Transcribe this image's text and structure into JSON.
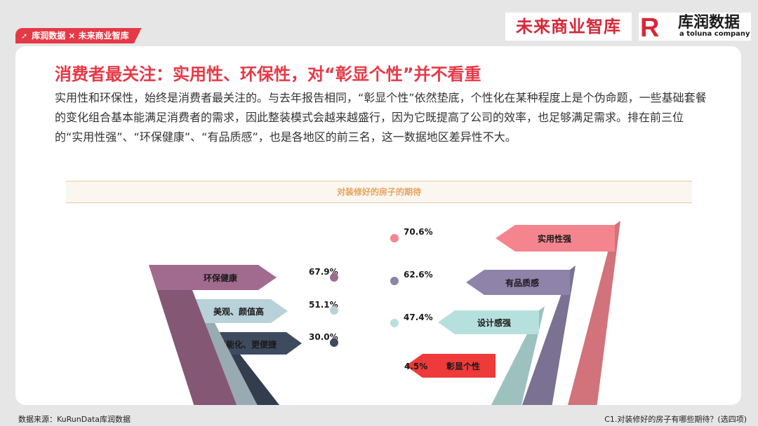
{
  "header": {
    "tag_label": "库润数据 × 未来商业智库",
    "brand_cn": "未来商业智库",
    "logo_letter": "R",
    "logo_name": "库润数据",
    "logo_sub": "a toluna company"
  },
  "main": {
    "headline": "消费者最关注：实用性、环保性，对“彰显个性”并不看重",
    "intro": "实用性和环保性，始终是消费者最关注的。与去年报告相同，“彰显个性”依然垫底，个性化在某种程度上是个伪命题，一些基础套餐的变化组合基本能满足消费者的需求，因此整装模式会越来越盛行，因为它既提高了公司的效率，也足够满足需求。排在前三位的“实用性强”、“环保健康”、“有品质感”，也是各地区的前三名，这一数据地区差异性不大。"
  },
  "chart_data": {
    "type": "bar",
    "title": "对装修好的房子的期待",
    "categories": [
      "实用性强",
      "环保健康",
      "有品质感",
      "美观、颜值高",
      "设计感强",
      "智能化、更便捷",
      "彰显个性"
    ],
    "values": [
      70.6,
      67.9,
      62.6,
      51.1,
      47.4,
      30.0,
      4.5
    ],
    "value_labels": [
      "70.6%",
      "67.9%",
      "62.6%",
      "51.1%",
      "47.4%",
      "30.0%",
      "4.5%"
    ],
    "unit": "%",
    "colors": {
      "实用性强": "#f4858e",
      "环保健康": "#a16b8f",
      "有品质感": "#8f83aa",
      "美观、颜值高": "#b9d1d9",
      "设计感强": "#b6e0dd",
      "智能化、更便捷": "#3e4a5e",
      "彰显个性": "#ee3a3a"
    }
  },
  "footer": {
    "source": "数据来源：KuRunData库润数据",
    "question": "C1.对装修好的房子有哪些期待？(选四项)"
  }
}
